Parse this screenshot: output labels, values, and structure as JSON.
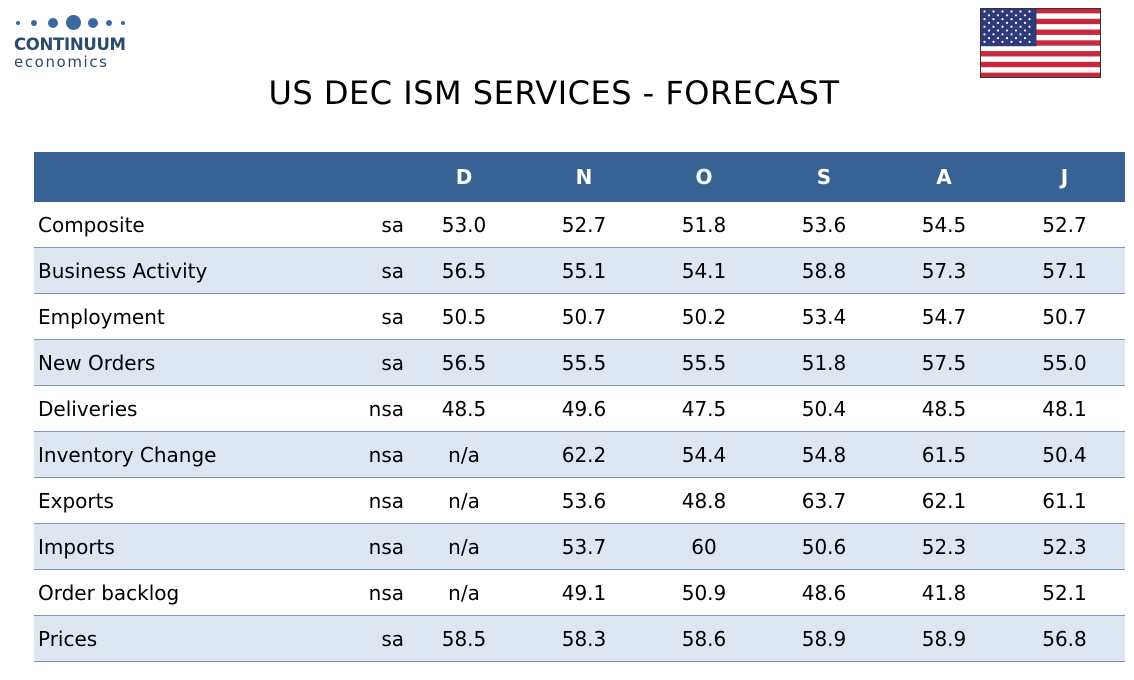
{
  "logo": {
    "name": "CONTINUUM",
    "sub": "economics"
  },
  "title": "US DEC ISM SERVICES - FORECAST",
  "colors": {
    "header_bg": "#386195",
    "alt_row_bg": "#dde6f1",
    "logo": "#2b4a70"
  },
  "flag_icon": "us-flag-icon",
  "columns": [
    "",
    "",
    "D",
    "N",
    "O",
    "S",
    "A",
    "J"
  ],
  "rows": [
    {
      "label": "Composite",
      "adj": "sa",
      "values": [
        "53.0",
        "52.7",
        "51.8",
        "53.6",
        "54.5",
        "52.7"
      ]
    },
    {
      "label": "Business Activity",
      "adj": "sa",
      "values": [
        "56.5",
        "55.1",
        "54.1",
        "58.8",
        "57.3",
        "57.1"
      ]
    },
    {
      "label": "Employment",
      "adj": "sa",
      "values": [
        "50.5",
        "50.7",
        "50.2",
        "53.4",
        "54.7",
        "50.7"
      ]
    },
    {
      "label": "New Orders",
      "adj": "sa",
      "values": [
        "56.5",
        "55.5",
        "55.5",
        "51.8",
        "57.5",
        "55.0"
      ]
    },
    {
      "label": "Deliveries",
      "adj": "nsa",
      "values": [
        "48.5",
        "49.6",
        "47.5",
        "50.4",
        "48.5",
        "48.1"
      ]
    },
    {
      "label": "Inventory Change",
      "adj": "nsa",
      "values": [
        "n/a",
        "62.2",
        "54.4",
        "54.8",
        "61.5",
        "50.4"
      ]
    },
    {
      "label": "Exports",
      "adj": "nsa",
      "values": [
        "n/a",
        "53.6",
        "48.8",
        "63.7",
        "62.1",
        "61.1"
      ]
    },
    {
      "label": "Imports",
      "adj": "nsa",
      "values": [
        "n/a",
        "53.7",
        "60",
        "50.6",
        "52.3",
        "52.3"
      ]
    },
    {
      "label": "Order backlog",
      "adj": "nsa",
      "values": [
        "n/a",
        "49.1",
        "50.9",
        "48.6",
        "41.8",
        "52.1"
      ]
    },
    {
      "label": "Prices",
      "adj": "sa",
      "values": [
        "58.5",
        "58.3",
        "58.6",
        "58.9",
        "58.9",
        "56.8"
      ]
    }
  ]
}
